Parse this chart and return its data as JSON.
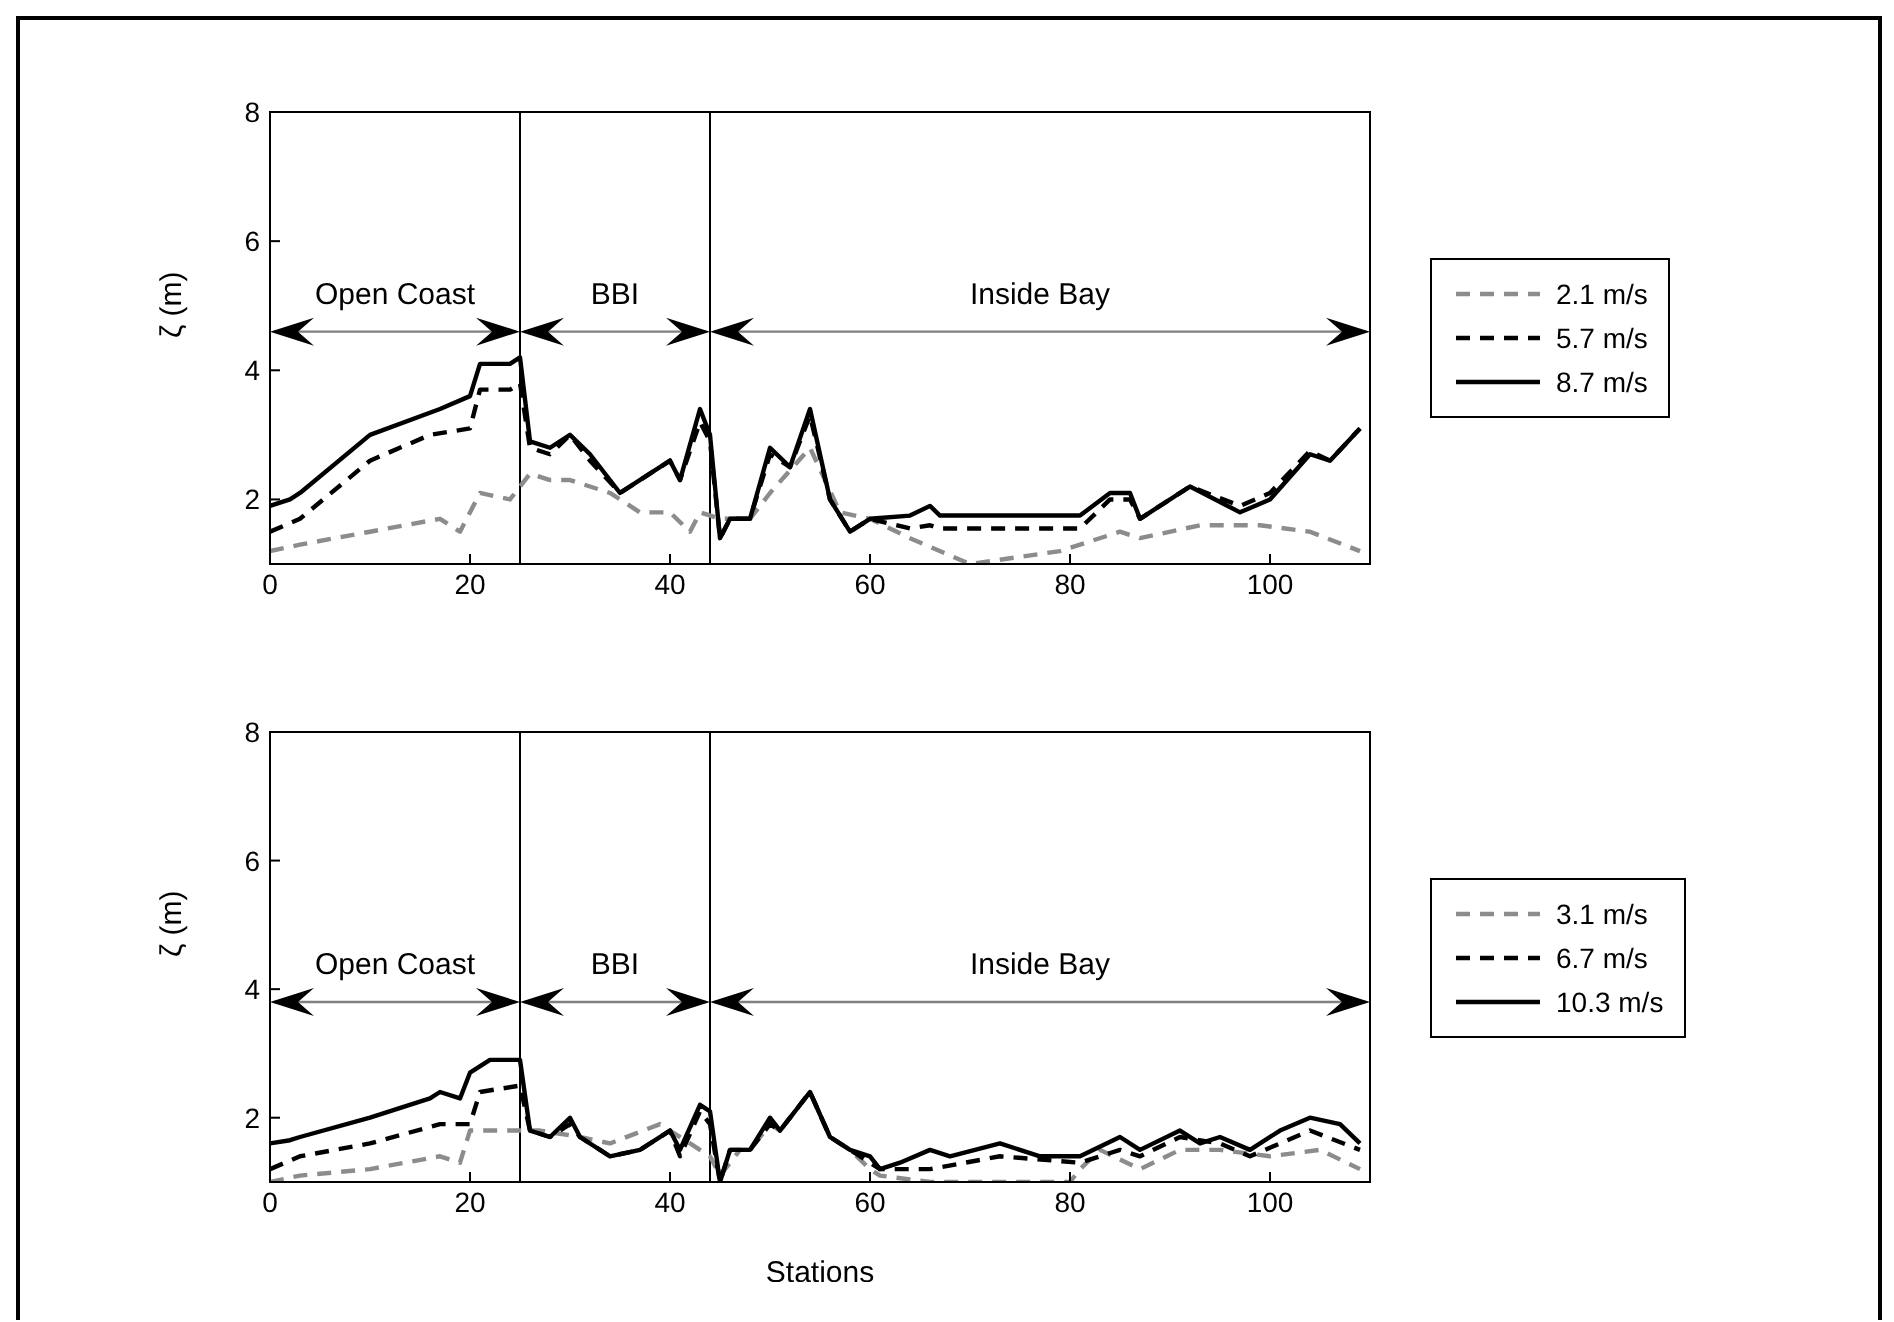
{
  "chart_data": [
    {
      "type": "line",
      "ylabel": "ζ (m)",
      "xlim": [
        0,
        110
      ],
      "xticks": [
        0,
        20,
        40,
        60,
        80,
        100
      ],
      "ylim": [
        1,
        8
      ],
      "yticks": [
        2,
        4,
        6,
        8
      ],
      "legend": "right",
      "ref_lines": [
        {
          "axis": "x",
          "value": 25,
          "color": "#000000"
        },
        {
          "axis": "x",
          "value": 44,
          "color": "#000000"
        }
      ],
      "annotations": [
        "Open Coast",
        "BBI",
        "Inside Bay"
      ],
      "series": [
        {
          "name": "2.1 m/s",
          "color": "#8c8c8c",
          "line_style": "dashed",
          "x": [
            0,
            3,
            10,
            17,
            19,
            21,
            24,
            26,
            28,
            30,
            34,
            37,
            40,
            42,
            43,
            45,
            48,
            50,
            54,
            57,
            60,
            64,
            70,
            79,
            85,
            87,
            93,
            99,
            104,
            109
          ],
          "values": [
            1.2,
            1.3,
            1.5,
            1.7,
            1.5,
            2.1,
            2.0,
            2.4,
            2.3,
            2.3,
            2.1,
            1.8,
            1.8,
            1.5,
            1.8,
            1.7,
            1.7,
            2.1,
            2.8,
            1.8,
            1.7,
            1.4,
            1.0,
            1.2,
            1.5,
            1.4,
            1.6,
            1.6,
            1.5,
            1.2
          ]
        },
        {
          "name": "5.7 m/s",
          "color": "#000000",
          "line_style": "dashed",
          "x": [
            0,
            3,
            10,
            16,
            20,
            21,
            23,
            24,
            25,
            26,
            28,
            30,
            32,
            35,
            40,
            41,
            43,
            44,
            45,
            46,
            48,
            50,
            52,
            54,
            56,
            58,
            60,
            64,
            66,
            67,
            81,
            84,
            86,
            87,
            92,
            97,
            100,
            104,
            106,
            109
          ],
          "values": [
            1.5,
            1.7,
            2.6,
            3.0,
            3.1,
            3.7,
            3.7,
            3.7,
            3.8,
            2.8,
            2.7,
            3.0,
            2.6,
            2.1,
            2.6,
            2.3,
            3.2,
            2.9,
            1.4,
            1.7,
            1.7,
            2.7,
            2.5,
            3.3,
            2.0,
            1.5,
            1.7,
            1.55,
            1.6,
            1.55,
            1.55,
            2.0,
            2.0,
            1.7,
            2.2,
            1.9,
            2.1,
            2.75,
            2.6,
            3.1
          ]
        },
        {
          "name": "8.7 m/s",
          "color": "#000000",
          "line_style": "solid",
          "x": [
            0,
            2,
            3,
            10,
            17,
            20,
            21,
            24,
            25,
            26,
            28,
            30,
            32,
            35,
            40,
            41,
            43,
            44,
            45,
            46,
            48,
            50,
            52,
            54,
            56,
            58,
            60,
            64,
            66,
            67,
            81,
            84,
            86,
            87,
            92,
            97,
            100,
            104,
            106,
            109
          ],
          "values": [
            1.9,
            2.0,
            2.1,
            3.0,
            3.4,
            3.6,
            4.1,
            4.1,
            4.2,
            2.9,
            2.8,
            3.0,
            2.7,
            2.1,
            2.6,
            2.3,
            3.4,
            3.0,
            1.4,
            1.7,
            1.7,
            2.8,
            2.5,
            3.4,
            2.0,
            1.5,
            1.7,
            1.75,
            1.9,
            1.75,
            1.75,
            2.1,
            2.1,
            1.7,
            2.2,
            1.8,
            2.0,
            2.7,
            2.6,
            3.1
          ]
        }
      ]
    },
    {
      "type": "line",
      "xlabel": "Stations",
      "ylabel": "ζ (m)",
      "xlim": [
        0,
        110
      ],
      "xticks": [
        0,
        20,
        40,
        60,
        80,
        100
      ],
      "ylim": [
        1,
        8
      ],
      "yticks": [
        2,
        4,
        6,
        8
      ],
      "legend": "right",
      "ref_lines": [
        {
          "axis": "x",
          "value": 25,
          "color": "#000000"
        },
        {
          "axis": "x",
          "value": 44,
          "color": "#000000"
        }
      ],
      "annotations": [
        "Open Coast",
        "BBI",
        "Inside Bay"
      ],
      "series": [
        {
          "name": "3.1 m/s",
          "color": "#8c8c8c",
          "line_style": "dashed",
          "x": [
            0,
            3,
            10,
            17,
            19,
            20,
            25,
            27,
            31,
            34,
            39,
            42,
            44,
            45,
            47,
            48,
            50,
            51,
            54,
            56,
            58,
            60,
            61,
            66,
            80,
            81,
            83,
            87,
            91,
            95,
            100,
            105,
            109
          ],
          "values": [
            1.0,
            1.1,
            1.2,
            1.4,
            1.3,
            1.8,
            1.8,
            1.8,
            1.7,
            1.6,
            1.9,
            1.6,
            1.4,
            1.1,
            1.5,
            1.5,
            1.9,
            1.8,
            2.4,
            1.7,
            1.5,
            1.2,
            1.1,
            1.0,
            1.0,
            1.2,
            1.5,
            1.2,
            1.5,
            1.5,
            1.4,
            1.5,
            1.2
          ]
        },
        {
          "name": "6.7 m/s",
          "color": "#000000",
          "line_style": "dashed",
          "x": [
            0,
            3,
            10,
            17,
            20,
            21,
            25,
            26,
            28,
            30,
            31,
            34,
            37,
            40,
            41,
            43,
            44,
            45,
            46,
            48,
            50,
            51,
            54,
            56,
            58,
            60,
            61,
            63,
            66,
            73,
            81,
            85,
            87,
            91,
            95,
            98,
            104,
            109
          ],
          "values": [
            1.2,
            1.4,
            1.6,
            1.9,
            1.9,
            2.4,
            2.5,
            1.8,
            1.7,
            1.9,
            1.7,
            1.4,
            1.5,
            1.8,
            1.4,
            2.1,
            1.9,
            1.0,
            1.5,
            1.5,
            1.9,
            1.8,
            2.4,
            1.7,
            1.5,
            1.3,
            1.2,
            1.2,
            1.2,
            1.4,
            1.3,
            1.5,
            1.4,
            1.7,
            1.6,
            1.4,
            1.8,
            1.5
          ]
        },
        {
          "name": "10.3 m/s",
          "color": "#000000",
          "line_style": "solid",
          "x": [
            0,
            2,
            3,
            10,
            16,
            17,
            19,
            20,
            22,
            25,
            26,
            28,
            30,
            31,
            34,
            37,
            40,
            41,
            43,
            44,
            45,
            46,
            48,
            50,
            51,
            54,
            56,
            58,
            60,
            61,
            63,
            66,
            68,
            73,
            77,
            81,
            85,
            87,
            91,
            93,
            95,
            98,
            101,
            104,
            107,
            109
          ],
          "values": [
            1.6,
            1.65,
            1.7,
            2.0,
            2.3,
            2.4,
            2.3,
            2.7,
            2.9,
            2.9,
            1.8,
            1.7,
            2.0,
            1.7,
            1.4,
            1.5,
            1.8,
            1.5,
            2.2,
            2.1,
            1.0,
            1.5,
            1.5,
            2.0,
            1.8,
            2.4,
            1.7,
            1.5,
            1.4,
            1.2,
            1.3,
            1.5,
            1.4,
            1.6,
            1.4,
            1.4,
            1.7,
            1.5,
            1.8,
            1.6,
            1.7,
            1.5,
            1.8,
            2.0,
            1.9,
            1.6
          ]
        }
      ]
    }
  ]
}
